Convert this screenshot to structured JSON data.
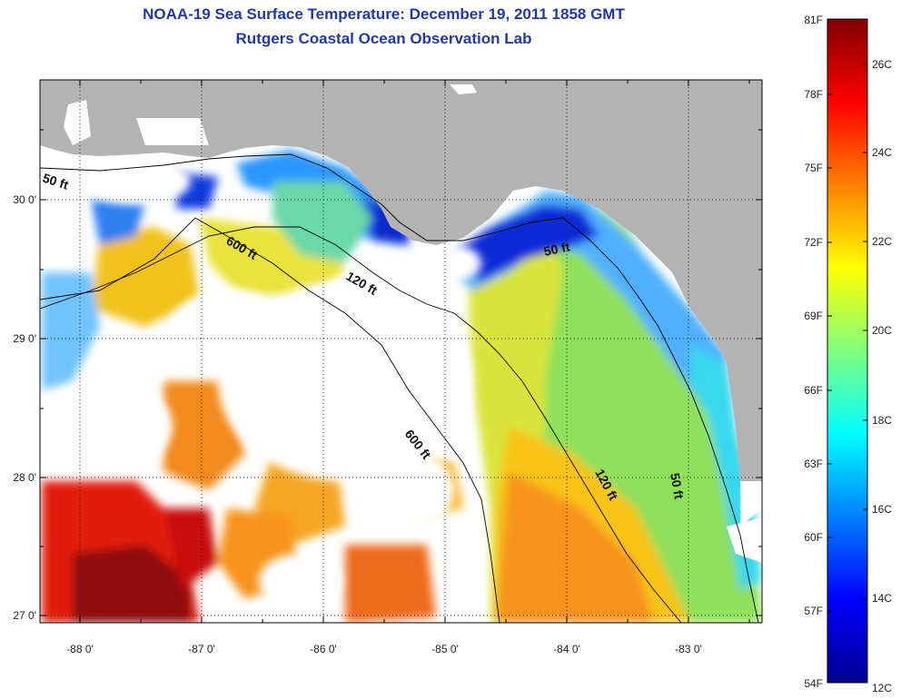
{
  "title": {
    "line1": "NOAA-19 Sea Surface Temperature:  December 19, 2011 1858 GMT",
    "line2": "Rutgers Coastal Ocean Observation Lab"
  },
  "map": {
    "lon_ticks": [
      "-88 0'",
      "-87 0'",
      "-86 0'",
      "-85 0'",
      "-84 0'",
      "-83 0'"
    ],
    "lat_ticks": [
      "30 0'",
      "29 0'",
      "28 0'",
      "27 0'"
    ],
    "contour_labels": [
      "50 ft",
      "600 ft",
      "120 ft",
      "50 ft",
      "600 ft",
      "120 ft",
      "50 ft"
    ],
    "colors": {
      "land": "#b3b3b3",
      "cloud": "#ffffff",
      "isobath": "#000000"
    }
  },
  "colorbar": {
    "fahrenheit_labels": [
      "81F",
      "78F",
      "75F",
      "72F",
      "69F",
      "66F",
      "63F",
      "60F",
      "57F",
      "54F"
    ],
    "celsius_labels": [
      "26C",
      "24C",
      "22C",
      "20C",
      "18C",
      "16C",
      "14C",
      "12C"
    ],
    "range_F": [
      54,
      81
    ],
    "range_C": [
      12,
      27.2
    ],
    "colormap": "jet"
  }
}
